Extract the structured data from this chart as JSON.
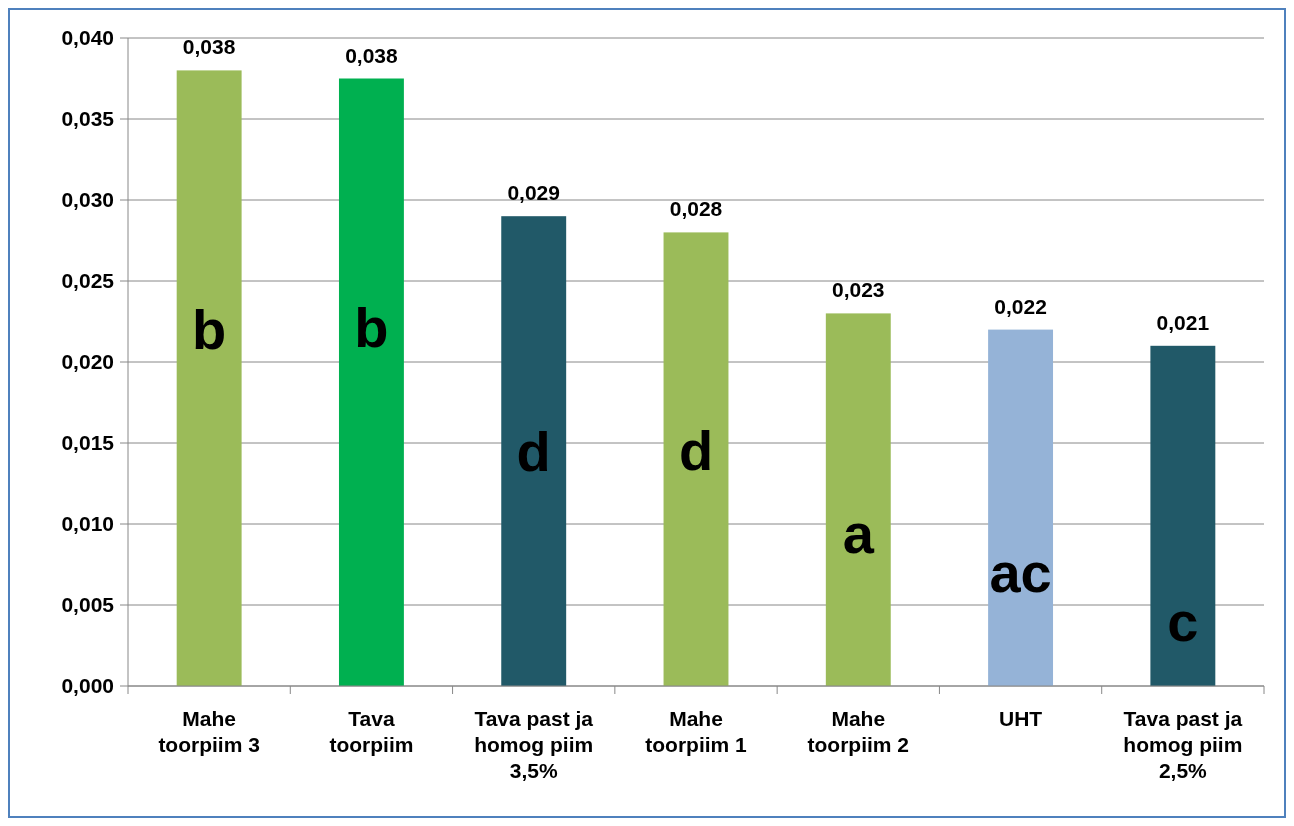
{
  "chart_data": {
    "type": "bar",
    "categories": [
      "Mahe toorpiim 3",
      "Tava toorpiim",
      "Tava past ja homog piim 3,5%",
      "Mahe toorpiim 1",
      "Mahe toorpiim 2",
      "UHT",
      "Tava past ja homog piim 2,5%"
    ],
    "values": [
      0.038,
      0.0375,
      0.029,
      0.028,
      0.023,
      0.022,
      0.021
    ],
    "colors": [
      "#9bbb59",
      "#00b050",
      "#215968",
      "#9bbb59",
      "#9bbb59",
      "#95b3d7",
      "#215968"
    ],
    "value_labels": [
      "0,038",
      "0,038",
      "0,029",
      "0,028",
      "0,023",
      "0,022",
      "0,021"
    ],
    "ylim": [
      0,
      0.04
    ],
    "yticks": [
      {
        "value": 0,
        "label": "0,000"
      },
      {
        "value": 0.005,
        "label": "0,005"
      },
      {
        "value": 0.01,
        "label": "0,010"
      },
      {
        "value": 0.015,
        "label": "0,015"
      },
      {
        "value": 0.02,
        "label": "0,020"
      },
      {
        "value": 0.025,
        "label": "0,025"
      },
      {
        "value": 0.03,
        "label": "0,030"
      },
      {
        "value": 0.035,
        "label": "0,035"
      },
      {
        "value": 0.04,
        "label": "0,040"
      }
    ],
    "grid": "y",
    "annotations": [
      "b",
      "b",
      "d",
      "d",
      "a",
      "ac",
      "c"
    ]
  }
}
